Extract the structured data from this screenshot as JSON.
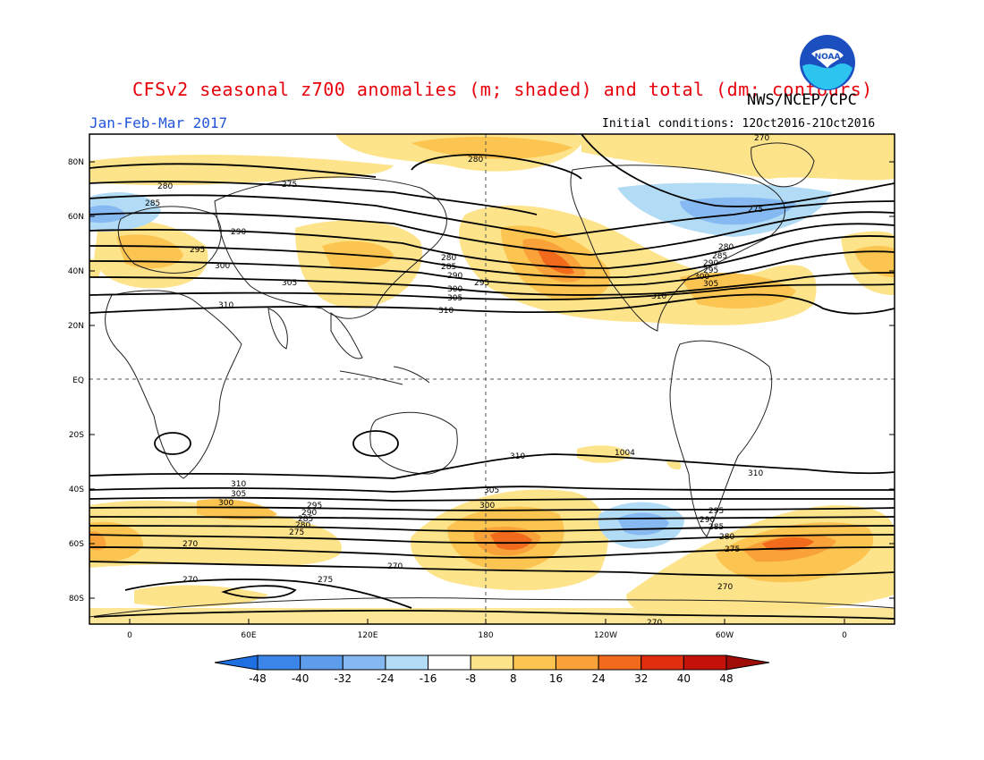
{
  "title": "CFSv2 seasonal z700 anomalies (m; shaded) and total (dm; contours)",
  "agency": "NWS/NCEP/CPC",
  "season": "Jan-Feb-Mar 2017",
  "initial_conditions": "Initial conditions: 12Oct2016-21Oct2016",
  "logo_text": "NOAA",
  "colors": {
    "title": "#e8000b",
    "season": "#2255dd",
    "contour": "#000000",
    "gridline": "#555555"
  },
  "lat_labels": [
    "80N",
    "60N",
    "40N",
    "20N",
    "EQ",
    "20S",
    "40S",
    "60S",
    "80S"
  ],
  "lon_labels": [
    "0",
    "60E",
    "120E",
    "180",
    "120W",
    "60W",
    "0"
  ],
  "colorbar": {
    "ticks": [
      "-48",
      "-40",
      "-32",
      "-24",
      "-16",
      "-8",
      "8",
      "16",
      "24",
      "32",
      "40",
      "48"
    ],
    "colors": [
      "#1e6fe0",
      "#3c85e8",
      "#5e9cec",
      "#86b8f2",
      "#b2dcf5",
      "#ffffff",
      "#fde38a",
      "#fcc450",
      "#f9a23a",
      "#f26a1c",
      "#e02e0e",
      "#c41208"
    ]
  },
  "contour_labels": {
    "nh": [
      "275",
      "280",
      "285",
      "290",
      "295",
      "300",
      "305",
      "310",
      "280",
      "285",
      "290",
      "295",
      "300",
      "305",
      "310",
      "275",
      "280",
      "285",
      "290",
      "295",
      "300",
      "305",
      "310",
      "270"
    ],
    "sh": [
      "310",
      "310",
      "1004",
      "310",
      "305",
      "300",
      "295",
      "290",
      "285",
      "280",
      "275",
      "270",
      "270",
      "270",
      "275",
      "305",
      "300",
      "295",
      "290",
      "285",
      "280",
      "275",
      "270",
      "270"
    ]
  }
}
